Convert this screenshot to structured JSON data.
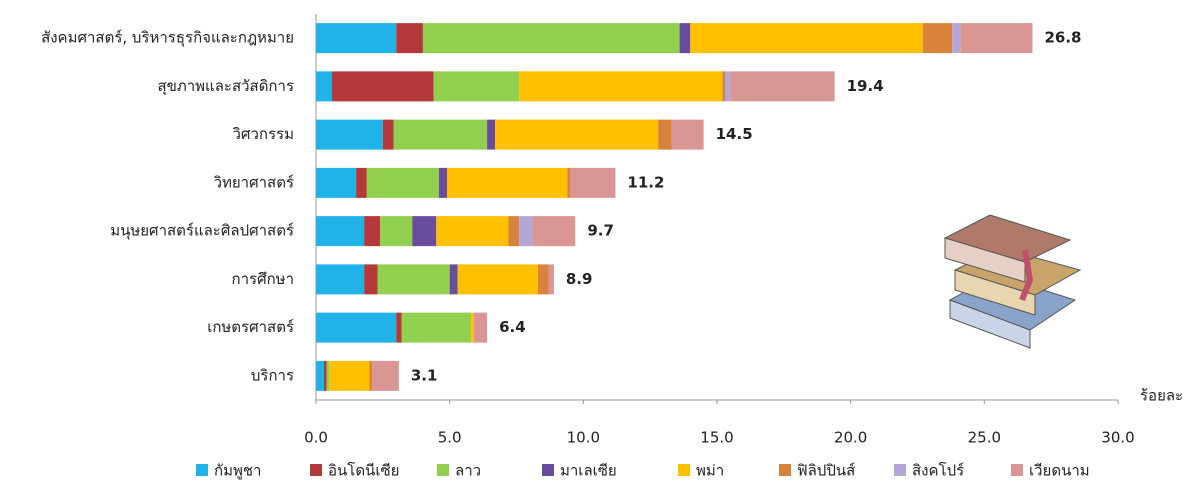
{
  "chart_data": {
    "type": "stacked-bar-horizontal",
    "categories": [
      "สังคมศาสตร์, บริหารธุรกิจและกฎหมาย",
      "สุขภาพและสวัสดิการ",
      "วิศวกรรม",
      "วิทยาศาสตร์",
      "มนุษยศาสตร์และศิลปศาสตร์",
      "การศึกษา",
      "เกษตรศาสตร์",
      "บริการ"
    ],
    "series": [
      {
        "name": "กัมพูชา",
        "color": "#1fb3e8",
        "values": [
          3.0,
          0.6,
          2.5,
          1.5,
          1.8,
          1.8,
          3.0,
          0.3
        ]
      },
      {
        "name": "อินโดนีเซีย",
        "color": "#b3393b",
        "values": [
          1.0,
          3.8,
          0.4,
          0.4,
          0.6,
          0.5,
          0.2,
          0.1
        ]
      },
      {
        "name": "ลาว",
        "color": "#92d050",
        "values": [
          9.6,
          3.2,
          3.5,
          2.7,
          1.2,
          2.7,
          2.6,
          0.1
        ]
      },
      {
        "name": "มาเลเซีย",
        "color": "#6a4c9c",
        "values": [
          0.4,
          0,
          0.3,
          0.3,
          0.9,
          0.3,
          0,
          0
        ]
      },
      {
        "name": "พม่า",
        "color": "#ffc000",
        "values": [
          8.7,
          7.6,
          6.1,
          4.5,
          2.7,
          3.0,
          0.1,
          1.5
        ]
      },
      {
        "name": "ฟิลิปปินส์",
        "color": "#d9823b",
        "values": [
          1.1,
          0.1,
          0.5,
          0.1,
          0.4,
          0.4,
          0,
          0.1
        ]
      },
      {
        "name": "สิงคโปร์",
        "color": "#b4a7d6",
        "values": [
          0.3,
          0.2,
          0,
          0,
          0.5,
          0,
          0,
          0
        ]
      },
      {
        "name": "เวียดนาม",
        "color": "#d99694",
        "values": [
          2.7,
          3.9,
          1.2,
          1.7,
          1.6,
          0.2,
          0.5,
          1.0
        ]
      }
    ],
    "totals": [
      26.8,
      19.4,
      14.5,
      11.2,
      9.7,
      8.9,
      6.4,
      3.1
    ],
    "x_label": "ร้อยละ",
    "xlim": [
      0,
      30
    ],
    "xticks": [
      {
        "value": 0,
        "label": "0.0"
      },
      {
        "value": 5,
        "label": "5.0"
      },
      {
        "value": 10,
        "label": "10.0"
      },
      {
        "value": 15,
        "label": "15.0"
      },
      {
        "value": 20,
        "label": "20.0"
      },
      {
        "value": 25,
        "label": "25.0"
      },
      {
        "value": 30,
        "label": "30.0"
      }
    ]
  }
}
